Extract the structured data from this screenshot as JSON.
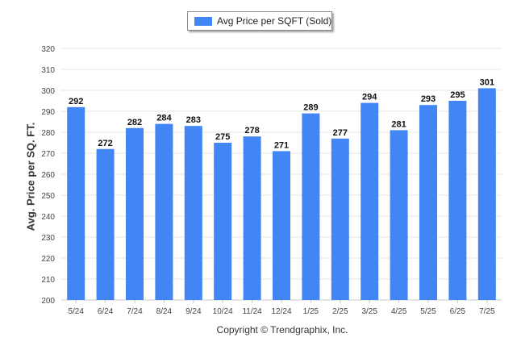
{
  "chart_data": {
    "type": "bar",
    "title": "",
    "legend": {
      "entries": [
        "Avg Price per SQFT (Sold)"
      ],
      "placement": "top-center"
    },
    "ylabel": "Avg. Price per SQ. FT.",
    "xlabel": "",
    "ylim": [
      200,
      320
    ],
    "yticks": [
      200,
      210,
      220,
      230,
      240,
      250,
      260,
      270,
      280,
      290,
      300,
      310,
      320
    ],
    "grid": true,
    "categories": [
      "5/24",
      "6/24",
      "7/24",
      "8/24",
      "9/24",
      "10/24",
      "11/24",
      "12/24",
      "1/25",
      "2/25",
      "3/25",
      "4/25",
      "5/25",
      "6/25",
      "7/25"
    ],
    "series": [
      {
        "name": "Avg Price per SQFT (Sold)",
        "values": [
          292,
          272,
          282,
          284,
          283,
          275,
          278,
          271,
          289,
          277,
          294,
          281,
          293,
          295,
          301
        ]
      }
    ],
    "bar_color": "#4285f4"
  },
  "footer": {
    "copyright": "Copyright © Trendgraphix, Inc."
  }
}
